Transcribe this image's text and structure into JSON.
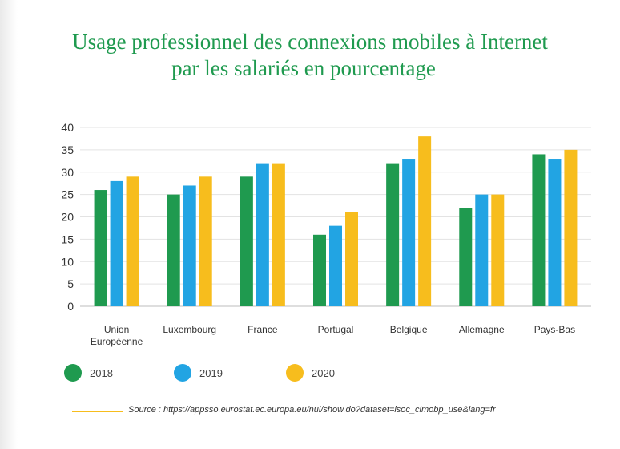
{
  "title_line1": "Usage professionnel des connexions mobiles à Internet",
  "title_line2": "par les salariés en pourcentage",
  "source": "Source : https://appsso.eurostat.ec.europa.eu/nui/show.do?dataset=isoc_cimobp_use&lang=fr",
  "chart_data": {
    "type": "bar",
    "title": "Usage professionnel des connexions mobiles à Internet par les salariés en pourcentage",
    "categories": [
      [
        "Union",
        "Européenne"
      ],
      [
        "Luxembourg"
      ],
      [
        "France"
      ],
      [
        "Portugal"
      ],
      [
        "Belgique"
      ],
      [
        "Allemagne"
      ],
      [
        "Pays-Bas"
      ]
    ],
    "series": [
      {
        "name": "2018",
        "color": "#1f9a4f",
        "values": [
          26,
          25,
          29,
          16,
          32,
          22,
          34
        ]
      },
      {
        "name": "2019",
        "color": "#22a4e3",
        "values": [
          28,
          27,
          32,
          18,
          33,
          25,
          33
        ]
      },
      {
        "name": "2020",
        "color": "#f7bd1d",
        "values": [
          29,
          29,
          32,
          21,
          38,
          25,
          35
        ]
      }
    ],
    "ylim": [
      0,
      40
    ],
    "yticks": [
      0,
      5,
      10,
      15,
      20,
      25,
      30,
      35,
      40
    ],
    "grid": true,
    "legend_position": "bottom-left"
  }
}
